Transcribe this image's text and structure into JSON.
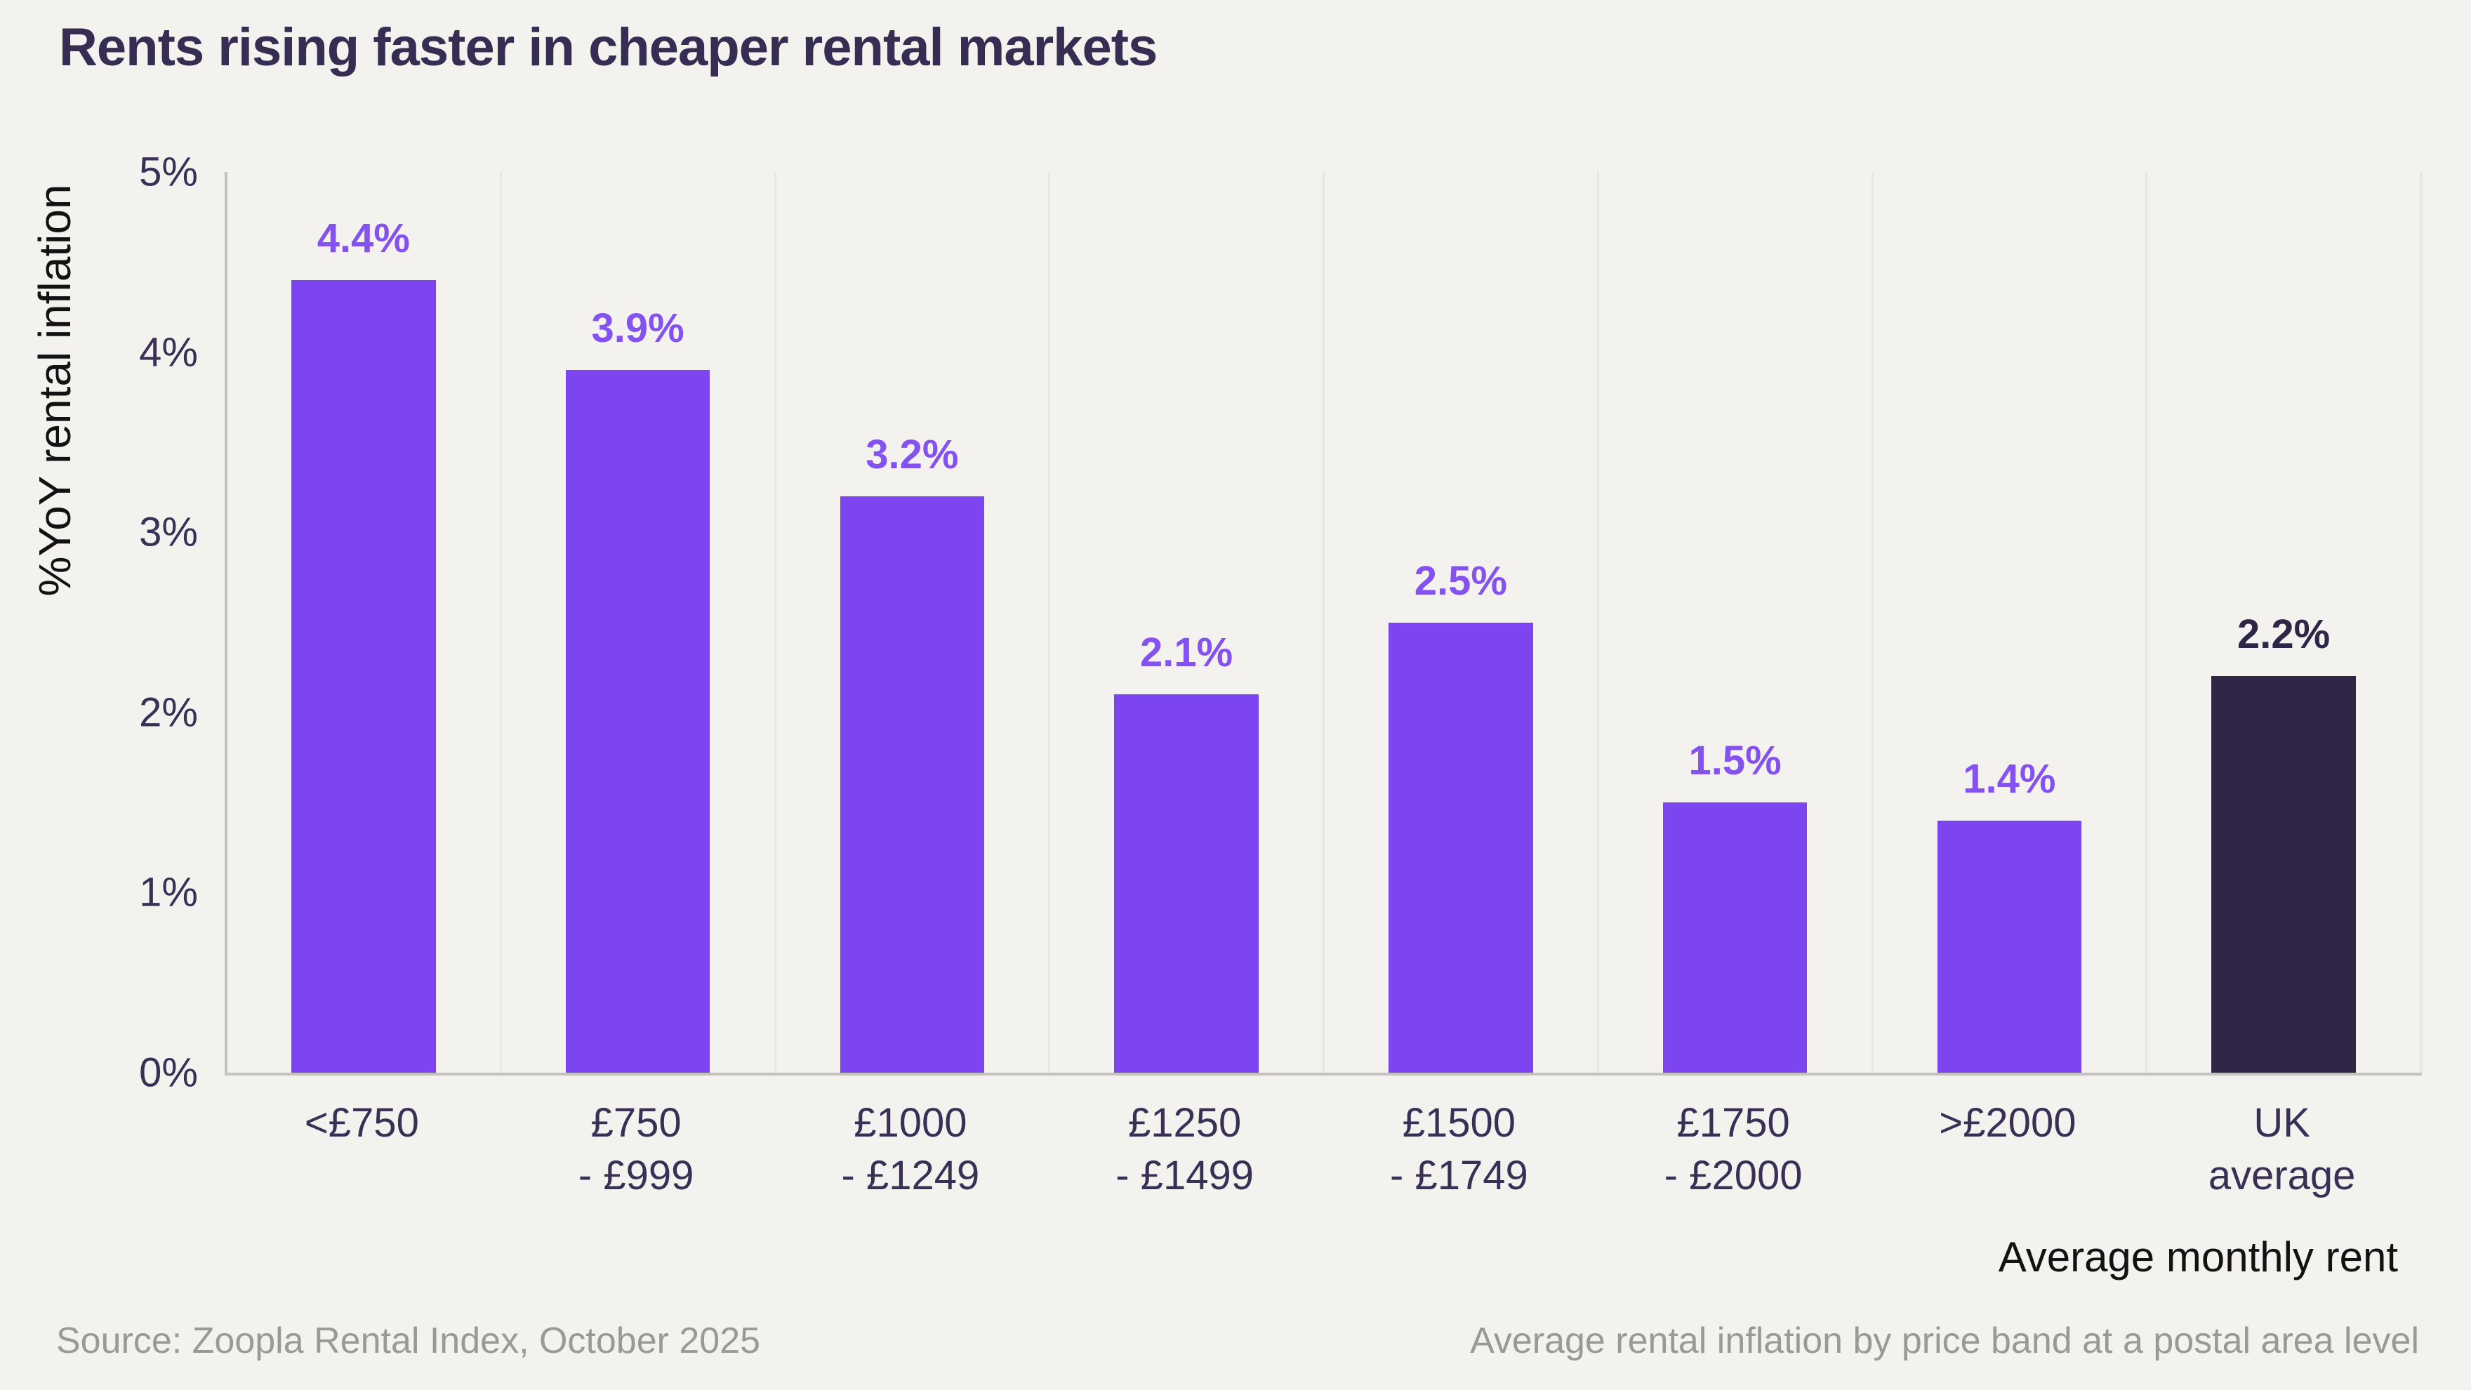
{
  "title": "Rents rising faster in cheaper rental markets",
  "chart_data": {
    "type": "bar",
    "title": "Rents rising faster in cheaper rental markets",
    "categories": [
      "<£750",
      "£750 - £999",
      "£1000 - £1249",
      "£1250 - £1499",
      "£1500 - £1749",
      "£1750 - £2000",
      ">£2000",
      "UK average"
    ],
    "category_lines": [
      [
        "<£750"
      ],
      [
        "£750",
        "- £999"
      ],
      [
        "£1000",
        "- £1249"
      ],
      [
        "£1250",
        "- £1499"
      ],
      [
        "£1500",
        "- £1749"
      ],
      [
        "£1750",
        "- £2000"
      ],
      [
        ">£2000"
      ],
      [
        "UK",
        "average"
      ]
    ],
    "values": [
      4.4,
      3.9,
      3.2,
      2.1,
      2.5,
      1.5,
      1.4,
      2.2
    ],
    "value_labels": [
      "4.4%",
      "3.9%",
      "3.2%",
      "2.1%",
      "2.5%",
      "1.5%",
      "1.4%",
      "2.2%"
    ],
    "highlight_index": 7,
    "xlabel": "Average monthly rent",
    "ylabel": "%YoY rental inflation",
    "ylim": [
      0,
      5
    ],
    "yticks": [
      "5%",
      "4%",
      "3%",
      "2%",
      "1%",
      "0%"
    ],
    "grid": "vertical category separators only",
    "legend": "none"
  },
  "colors": {
    "background": "#F4F2EF",
    "bar": "#7D45F0",
    "bar_highlight": "#302747",
    "value_label": "#8552F2",
    "value_label_highlight": "#2F2546",
    "axis_line": "#C3C1BE",
    "gridline": "#E8E6E3",
    "tick_text": "#3A2F55",
    "title_text": "#372C52",
    "footer_text": "#9B9997"
  },
  "footer": {
    "source": "Source: Zoopla Rental Index, October 2025",
    "note": "Average rental inflation by price band at a postal area level"
  }
}
